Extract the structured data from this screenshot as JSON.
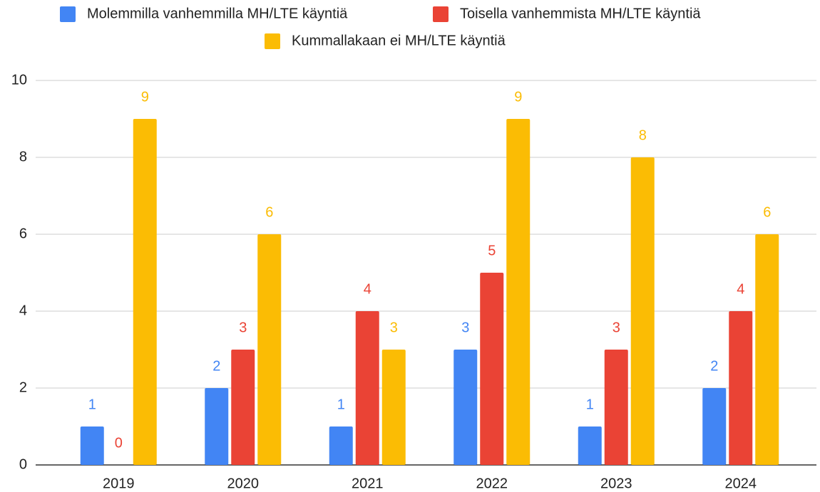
{
  "chart_data": {
    "type": "bar",
    "categories": [
      "2019",
      "2020",
      "2021",
      "2022",
      "2023",
      "2024"
    ],
    "series": [
      {
        "name": "Molemmilla vanhemmilla MH/LTE käyntiä",
        "color": "#4285f4",
        "values": [
          1,
          2,
          1,
          3,
          1,
          2
        ]
      },
      {
        "name": "Toisella vanhemmista MH/LTE käyntiä",
        "color": "#ea4335",
        "values": [
          0,
          3,
          4,
          5,
          3,
          4
        ]
      },
      {
        "name": "Kummallakaan ei MH/LTE käyntiä",
        "color": "#fbbc04",
        "values": [
          9,
          6,
          3,
          9,
          8,
          6
        ]
      }
    ],
    "ylim": [
      0,
      10
    ],
    "yticks": [
      0,
      2,
      4,
      6,
      8,
      10
    ],
    "grid": true,
    "legend": "top"
  }
}
